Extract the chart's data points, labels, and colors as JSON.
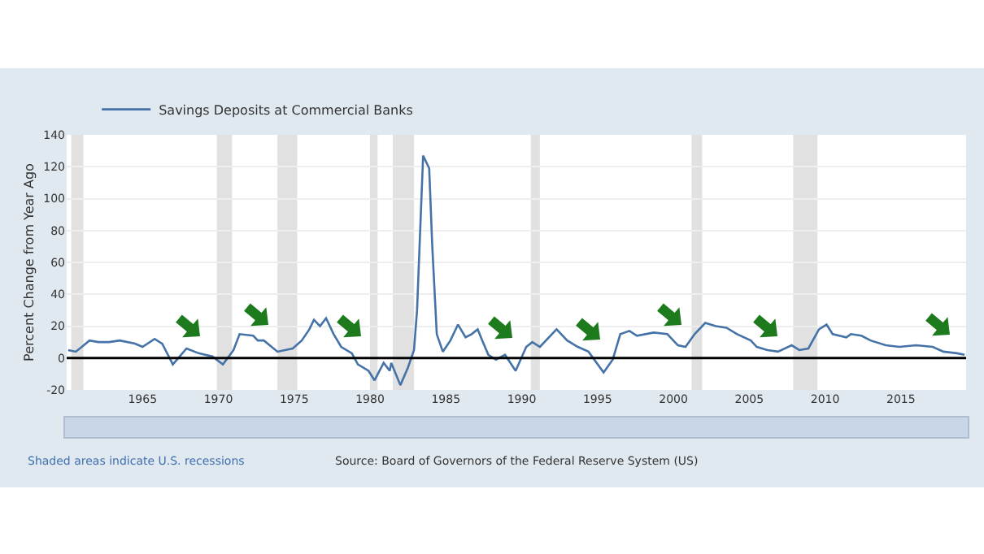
{
  "chart_data": {
    "type": "line",
    "ylabel": "Percent Change from Year Ago",
    "x": [
      1960.1,
      1960.6,
      1961.0,
      1961.5,
      1962.1,
      1962.8,
      1963.5,
      1964.5,
      1965.0,
      1965.8,
      1966.3,
      1967.0,
      1967.9,
      1968.7,
      1969.6,
      1970.3,
      1971.0,
      1971.4,
      1972.3,
      1972.6,
      1973.0,
      1973.9,
      1974.9,
      1975.5,
      1976.0,
      1976.3,
      1976.7,
      1977.1,
      1977.6,
      1978.1,
      1978.8,
      1979.2,
      1979.9,
      1980.3,
      1980.9,
      1981.3,
      1981.4,
      1982.0,
      1982.5,
      1982.9,
      1983.1,
      1983.5,
      1983.9,
      1984.1,
      1984.4,
      1984.8,
      1985.3,
      1985.8,
      1986.3,
      1986.7,
      1987.1,
      1987.4,
      1987.8,
      1988.3,
      1988.9,
      1989.6,
      1990.3,
      1990.7,
      1991.2,
      1992.3,
      1993.0,
      1993.7,
      1994.4,
      1995.4,
      1996.0,
      1996.5,
      1997.1,
      1997.6,
      1998.7,
      1999.6,
      2000.3,
      2000.8,
      2001.4,
      2002.1,
      2002.8,
      2003.5,
      2004.2,
      2005.1,
      2005.5,
      2006.2,
      2006.9,
      2007.8,
      2008.3,
      2008.9,
      2009.6,
      2010.1,
      2010.5,
      2011.4,
      2011.7,
      2012.4,
      2013.0,
      2014.0,
      2014.9,
      2016.0,
      2017.1,
      2017.8,
      2018.7,
      2019.2
    ],
    "series": [
      {
        "name": "Savings Deposits at Commercial Banks",
        "color": "#4572a7",
        "values": [
          5,
          4,
          7,
          11,
          10,
          10,
          11,
          9,
          7,
          12,
          9,
          -4,
          6,
          3,
          1,
          -4,
          5,
          15,
          14,
          11,
          11,
          4,
          6,
          11,
          18,
          24,
          20,
          25,
          15,
          7,
          3,
          -4,
          -8,
          -14,
          -3,
          -8,
          -3,
          -17,
          -6,
          5,
          30,
          127,
          119,
          71,
          15,
          4,
          11,
          21,
          13,
          15,
          18,
          11,
          2,
          -1,
          2,
          -8,
          7,
          10,
          7,
          18,
          11,
          7,
          4,
          -9,
          -1,
          15,
          17,
          14,
          16,
          15,
          8,
          7,
          15,
          22,
          20,
          19,
          15,
          11,
          7,
          5,
          4,
          8,
          5,
          6,
          18,
          21,
          15,
          13,
          15,
          14,
          11,
          8,
          7,
          8,
          7,
          4,
          3,
          2
        ]
      }
    ],
    "xlim": [
      1960,
      2019.3
    ],
    "xticks": [
      1965,
      1970,
      1975,
      1980,
      1985,
      1990,
      1995,
      2000,
      2005,
      2010,
      2015
    ],
    "ylim": [
      -20,
      140
    ],
    "yticks": [
      -20,
      0,
      20,
      40,
      60,
      80,
      100,
      120,
      140
    ],
    "grid": "y",
    "legend": "top left",
    "ref_lines": [
      {
        "axis": "y",
        "value": 0,
        "color": "#000000"
      }
    ],
    "bands": [
      {
        "axis": "x",
        "from": 1960.3,
        "to": 1961.1,
        "color": "#e1e1e1"
      },
      {
        "axis": "x",
        "from": 1969.9,
        "to": 1970.9,
        "color": "#e1e1e1"
      },
      {
        "axis": "x",
        "from": 1973.9,
        "to": 1975.2,
        "color": "#e1e1e1"
      },
      {
        "axis": "x",
        "from": 1980.0,
        "to": 1980.5,
        "color": "#e1e1e1"
      },
      {
        "axis": "x",
        "from": 1981.5,
        "to": 1982.9,
        "color": "#e1e1e1"
      },
      {
        "axis": "x",
        "from": 1990.6,
        "to": 1991.2,
        "color": "#e1e1e1"
      },
      {
        "axis": "x",
        "from": 2001.2,
        "to": 2001.9,
        "color": "#e1e1e1"
      },
      {
        "axis": "x",
        "from": 2007.9,
        "to": 2009.5,
        "color": "#e1e1e1"
      }
    ],
    "annotations": [
      "Shaded areas indicate U.S. recessions",
      "Source: Board of Governors of the Federal Reserve System (US)"
    ]
  }
}
